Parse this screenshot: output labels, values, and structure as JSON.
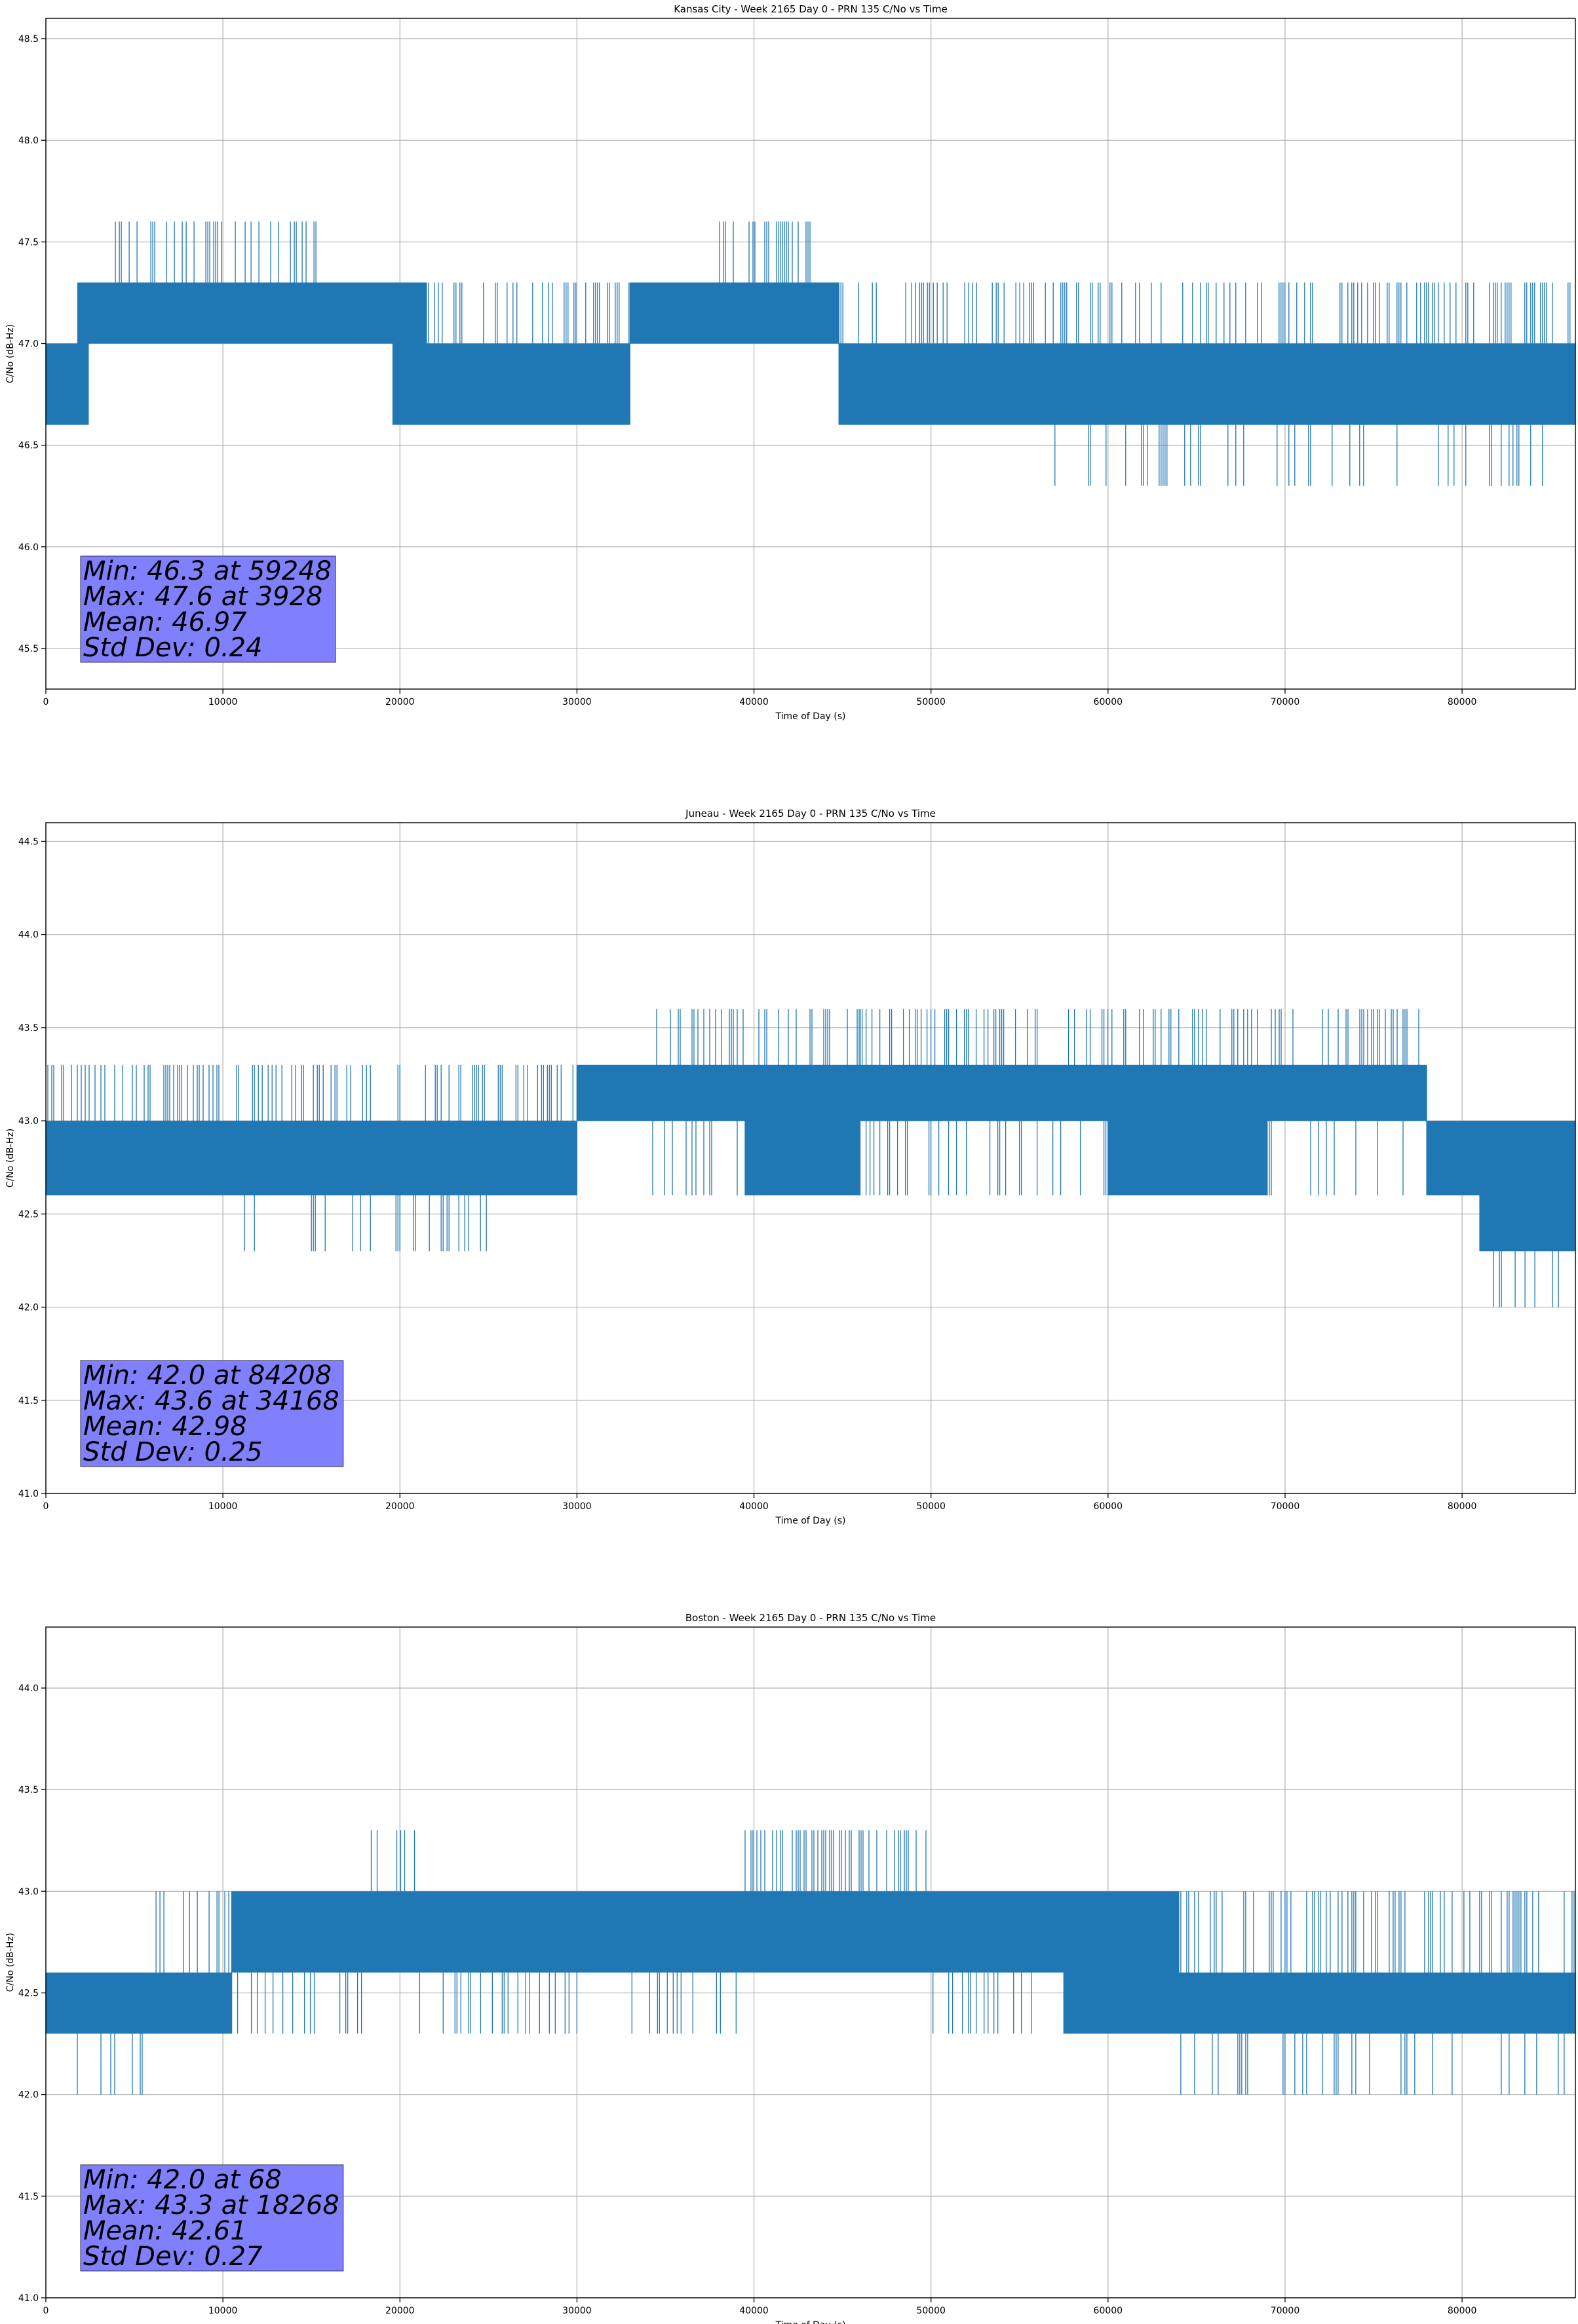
{
  "chart_data": [
    {
      "type": "line",
      "title": "Kansas City - Week 2165 Day 0 - PRN 135 C/No vs Time",
      "xlabel": "Time of Day (s)",
      "ylabel": "C/No (dB-Hz)",
      "xlim": [
        0,
        86400
      ],
      "ylim": [
        45.3,
        48.6
      ],
      "x_ticks": [
        0,
        10000,
        20000,
        30000,
        40000,
        50000,
        60000,
        70000,
        80000
      ],
      "y_ticks": [
        45.5,
        46.0,
        46.5,
        47.0,
        47.5,
        48.0,
        48.5
      ],
      "y_tick_labels": [
        "45.5",
        "46.0",
        "46.5",
        "47.0",
        "47.5",
        "48.0",
        "48.5"
      ],
      "grid": true,
      "series_color": "#1f77b4",
      "segments": [
        {
          "x": [
            0,
            1800
          ],
          "level": 47.0,
          "low": 46.6,
          "high": 47.0
        },
        {
          "x": [
            1800,
            2400
          ],
          "level": 47.0,
          "low": 46.6,
          "high": 47.3
        },
        {
          "x": [
            2400,
            3928
          ],
          "level": 47.0,
          "low": 47.0,
          "high": 47.3
        },
        {
          "x": [
            3928,
            16000
          ],
          "level": 47.0,
          "low": 47.0,
          "high": 47.3,
          "spikes_up": 47.6
        },
        {
          "x": [
            16000,
            19600
          ],
          "level": 47.0,
          "low": 47.0,
          "high": 47.3
        },
        {
          "x": [
            19600,
            21500
          ],
          "level": 47.0,
          "low": 46.6,
          "high": 47.3
        },
        {
          "x": [
            21500,
            33000
          ],
          "level": 46.6,
          "low": 46.6,
          "high": 47.0,
          "spikes_up": 47.3
        },
        {
          "x": [
            33000,
            37500
          ],
          "level": 47.0,
          "low": 47.0,
          "high": 47.3
        },
        {
          "x": [
            37500,
            43500
          ],
          "level": 47.0,
          "low": 47.0,
          "high": 47.3,
          "spikes_up": 47.6
        },
        {
          "x": [
            43500,
            44800
          ],
          "level": 47.0,
          "low": 47.0,
          "high": 47.3
        },
        {
          "x": [
            44800,
            57000
          ],
          "level": 46.6,
          "low": 46.6,
          "high": 47.0,
          "spikes_up": 47.3
        },
        {
          "x": [
            57000,
            86400
          ],
          "level": 46.6,
          "low": 46.6,
          "high": 47.0,
          "spikes_up": 47.3,
          "spikes_down": 46.3
        }
      ],
      "annotation": {
        "min_label": "Min: 46.3 at 59248",
        "max_label": "Max: 47.6 at 3928",
        "mean_label": "Mean: 46.97",
        "std_label": "Std Dev: 0.24",
        "box_color": "#8080ff"
      }
    },
    {
      "type": "line",
      "title": "Juneau - Week 2165 Day 0 - PRN 135 C/No vs Time",
      "xlabel": "Time of Day (s)",
      "ylabel": "C/No (dB-Hz)",
      "xlim": [
        0,
        86400
      ],
      "ylim": [
        41.0,
        44.6
      ],
      "x_ticks": [
        0,
        10000,
        20000,
        30000,
        40000,
        50000,
        60000,
        70000,
        80000
      ],
      "y_ticks": [
        41.0,
        41.5,
        42.0,
        42.5,
        43.0,
        43.5,
        44.0,
        44.5
      ],
      "y_tick_labels": [
        "41.0",
        "41.5",
        "42.0",
        "42.5",
        "43.0",
        "43.5",
        "44.0",
        "44.5"
      ],
      "grid": true,
      "series_color": "#1f77b4",
      "segments": [
        {
          "x": [
            0,
            11000
          ],
          "level": 43.0,
          "low": 42.6,
          "high": 43.0,
          "spikes_up": 43.3
        },
        {
          "x": [
            11000,
            25000
          ],
          "level": 42.6,
          "low": 42.6,
          "high": 43.0,
          "spikes_up": 43.3,
          "spikes_down": 42.3
        },
        {
          "x": [
            25000,
            30000
          ],
          "level": 42.6,
          "low": 42.6,
          "high": 43.0,
          "spikes_up": 43.3
        },
        {
          "x": [
            30000,
            34168
          ],
          "level": 43.0,
          "low": 43.0,
          "high": 43.3
        },
        {
          "x": [
            34168,
            39500
          ],
          "level": 43.0,
          "low": 43.0,
          "high": 43.3,
          "spikes_up": 43.6,
          "spikes_down": 42.6
        },
        {
          "x": [
            39500,
            46000
          ],
          "level": 43.0,
          "low": 42.6,
          "high": 43.3,
          "spikes_up": 43.6
        },
        {
          "x": [
            46000,
            60000
          ],
          "level": 43.0,
          "low": 43.0,
          "high": 43.3,
          "spikes_up": 43.6,
          "spikes_down": 42.6
        },
        {
          "x": [
            60000,
            69000
          ],
          "level": 43.0,
          "low": 42.6,
          "high": 43.3,
          "spikes_up": 43.6
        },
        {
          "x": [
            69000,
            78000
          ],
          "level": 43.0,
          "low": 43.0,
          "high": 43.3,
          "spikes_up": 43.6,
          "spikes_down": 42.6
        },
        {
          "x": [
            78000,
            81000
          ],
          "level": 42.6,
          "low": 42.6,
          "high": 43.0
        },
        {
          "x": [
            81000,
            86400
          ],
          "level": 42.6,
          "low": 42.3,
          "high": 43.0,
          "spikes_down": 42.0
        }
      ],
      "annotation": {
        "min_label": "Min: 42.0 at 84208",
        "max_label": "Max: 43.6 at 34168",
        "mean_label": "Mean: 42.98",
        "std_label": "Std Dev: 0.25",
        "box_color": "#8080ff"
      }
    },
    {
      "type": "line",
      "title": "Boston - Week 2165 Day 0 - PRN 135 C/No vs Time",
      "xlabel": "Time of Day (s)",
      "ylabel": "C/No (dB-Hz)",
      "xlim": [
        0,
        86400
      ],
      "ylim": [
        41.0,
        44.3
      ],
      "x_ticks": [
        0,
        10000,
        20000,
        30000,
        40000,
        50000,
        60000,
        70000,
        80000
      ],
      "y_ticks": [
        41.0,
        41.5,
        42.0,
        42.5,
        43.0,
        43.5,
        44.0
      ],
      "y_tick_labels": [
        "41.0",
        "41.5",
        "42.0",
        "42.5",
        "43.0",
        "43.5",
        "44.0"
      ],
      "grid": true,
      "series_color": "#1f77b4",
      "segments": [
        {
          "x": [
            0,
            6000
          ],
          "level": 42.3,
          "low": 42.3,
          "high": 42.6,
          "spikes_down": 42.0
        },
        {
          "x": [
            6000,
            10500
          ],
          "level": 42.6,
          "low": 42.3,
          "high": 42.6,
          "spikes_up": 43.0
        },
        {
          "x": [
            10500,
            18268
          ],
          "level": 42.6,
          "low": 42.6,
          "high": 43.0,
          "spikes_down": 42.3
        },
        {
          "x": [
            18268,
            21000
          ],
          "level": 42.6,
          "low": 42.6,
          "high": 43.0,
          "spikes_up": 43.3
        },
        {
          "x": [
            21000,
            39500
          ],
          "level": 43.0,
          "low": 42.6,
          "high": 43.0,
          "spikes_down": 42.3
        },
        {
          "x": [
            39500,
            50000
          ],
          "level": 43.0,
          "low": 42.6,
          "high": 43.0,
          "spikes_up": 43.3
        },
        {
          "x": [
            50000,
            57500
          ],
          "level": 42.6,
          "low": 42.6,
          "high": 43.0,
          "spikes_down": 42.3
        },
        {
          "x": [
            57500,
            64000
          ],
          "level": 42.6,
          "low": 42.3,
          "high": 43.0
        },
        {
          "x": [
            64000,
            86400
          ],
          "level": 42.6,
          "low": 42.3,
          "high": 42.6,
          "spikes_up": 43.0,
          "spikes_down": 42.0
        }
      ],
      "annotation": {
        "min_label": "Min: 42.0 at 68",
        "max_label": "Max: 43.3 at 18268",
        "mean_label": "Mean: 42.61",
        "std_label": "Std Dev: 0.27",
        "box_color": "#8080ff"
      }
    }
  ]
}
